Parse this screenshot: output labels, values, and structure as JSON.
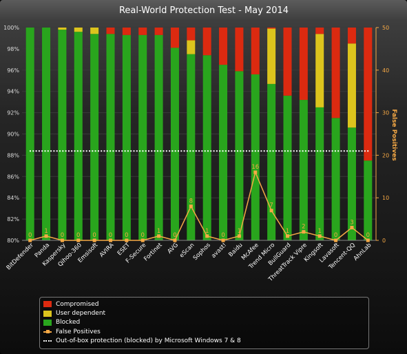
{
  "title": "Real-World Protection Test - May 2014",
  "y2_label": "False Positives",
  "colors": {
    "compromised": "#dc2a10",
    "user_dependent": "#dcc41d",
    "blocked": "#29a51d",
    "false_positives": "#f6a945",
    "baseline": "#ffffff"
  },
  "legend": {
    "compromised": "Compromised",
    "user_dependent": "User dependent",
    "blocked": "Blocked",
    "false_positives": "False Positives",
    "baseline": "Out-of-box protection (blocked) by Microsoft Windows 7 & 8"
  },
  "chart_data": {
    "type": "bar",
    "stacked": true,
    "title": "Real-World Protection Test - May 2014",
    "categories": [
      "BitDefender",
      "Panda",
      "Kaspersky",
      "Qihoo-360",
      "Emsisoft",
      "AVIRA",
      "ESET",
      "F-Secure",
      "Fortinet",
      "AVG",
      "eScan",
      "Sophos",
      "avast!",
      "Baidu",
      "McAfee",
      "Trend Micro",
      "BullGuard",
      "ThreatTrack Vipre",
      "Kingsoft",
      "Lavasoft",
      "Tencent-QQ",
      "AhnLab"
    ],
    "series": [
      {
        "name": "Blocked",
        "values": [
          100,
          100,
          99.8,
          99.6,
          99.4,
          99.4,
          99.3,
          99.3,
          99.3,
          98.1,
          97.5,
          97.4,
          96.5,
          95.9,
          95.6,
          94.7,
          93.6,
          93.2,
          92.5,
          91.5,
          90.6,
          87.5
        ]
      },
      {
        "name": "User dependent",
        "values": [
          0,
          0,
          0.2,
          0.4,
          0.6,
          0,
          0,
          0,
          0,
          0,
          1.3,
          0,
          0,
          0,
          0,
          5.2,
          0,
          0,
          6.9,
          0,
          7.9,
          0
        ]
      },
      {
        "name": "Compromised",
        "values": [
          0,
          0,
          0,
          0,
          0,
          0.6,
          0.7,
          0.7,
          0.7,
          1.9,
          1.2,
          2.6,
          3.5,
          4.1,
          4.4,
          0.1,
          6.4,
          6.8,
          0.6,
          8.5,
          1.5,
          12.5
        ]
      },
      {
        "name": "False Positives",
        "axis": "right",
        "type": "line",
        "values": [
          0,
          1,
          0,
          0,
          0,
          0,
          0,
          0,
          1,
          0,
          8,
          1,
          0,
          1,
          16,
          7,
          1,
          2,
          1,
          0,
          3,
          0
        ]
      }
    ],
    "ylim": [
      80,
      100
    ],
    "y_ticks": [
      "80%",
      "82%",
      "84%",
      "86%",
      "88%",
      "90%",
      "92%",
      "94%",
      "96%",
      "98%",
      "100%"
    ],
    "y2lim": [
      0,
      50
    ],
    "y2_ticks": [
      "0",
      "10",
      "20",
      "30",
      "40",
      "50"
    ],
    "y2label": "False Positives",
    "baseline": {
      "name": "Out-of-box protection (blocked) by Microsoft Windows 7 & 8",
      "value": 88.4
    }
  }
}
